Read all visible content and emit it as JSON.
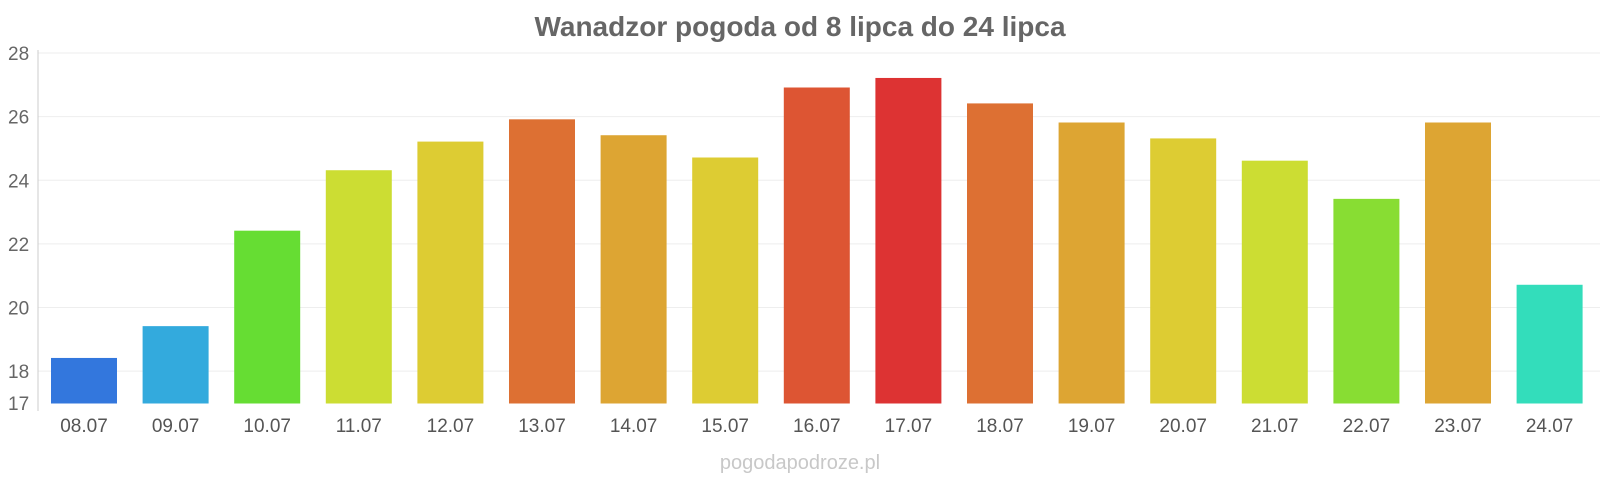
{
  "chart_data": {
    "type": "bar",
    "title": "Wanadzor pogoda od 8 lipca do 24 lipca",
    "xlabel": "",
    "ylabel": "",
    "ylim": [
      17,
      28
    ],
    "yticks": [
      17,
      18,
      20,
      22,
      24,
      26,
      28
    ],
    "grid": true,
    "categories": [
      "08.07",
      "09.07",
      "10.07",
      "11.07",
      "12.07",
      "13.07",
      "14.07",
      "15.07",
      "16.07",
      "17.07",
      "18.07",
      "19.07",
      "20.07",
      "21.07",
      "22.07",
      "23.07",
      "24.07"
    ],
    "values": [
      18.4,
      19.4,
      22.4,
      24.3,
      25.2,
      25.9,
      25.4,
      24.7,
      26.9,
      27.2,
      26.4,
      25.8,
      25.3,
      24.6,
      23.4,
      25.8,
      20.7
    ],
    "colors": [
      "#3377dd",
      "#33aadd",
      "#66dd33",
      "#ccdd33",
      "#ddcc33",
      "#dd7033",
      "#dda533",
      "#ddcc33",
      "#dd5533",
      "#dd3333",
      "#dd7033",
      "#dda533",
      "#ddcc33",
      "#ccdd33",
      "#88dd33",
      "#dda533",
      "#33ddbb"
    ],
    "source": "pogodapodroze.pl"
  }
}
